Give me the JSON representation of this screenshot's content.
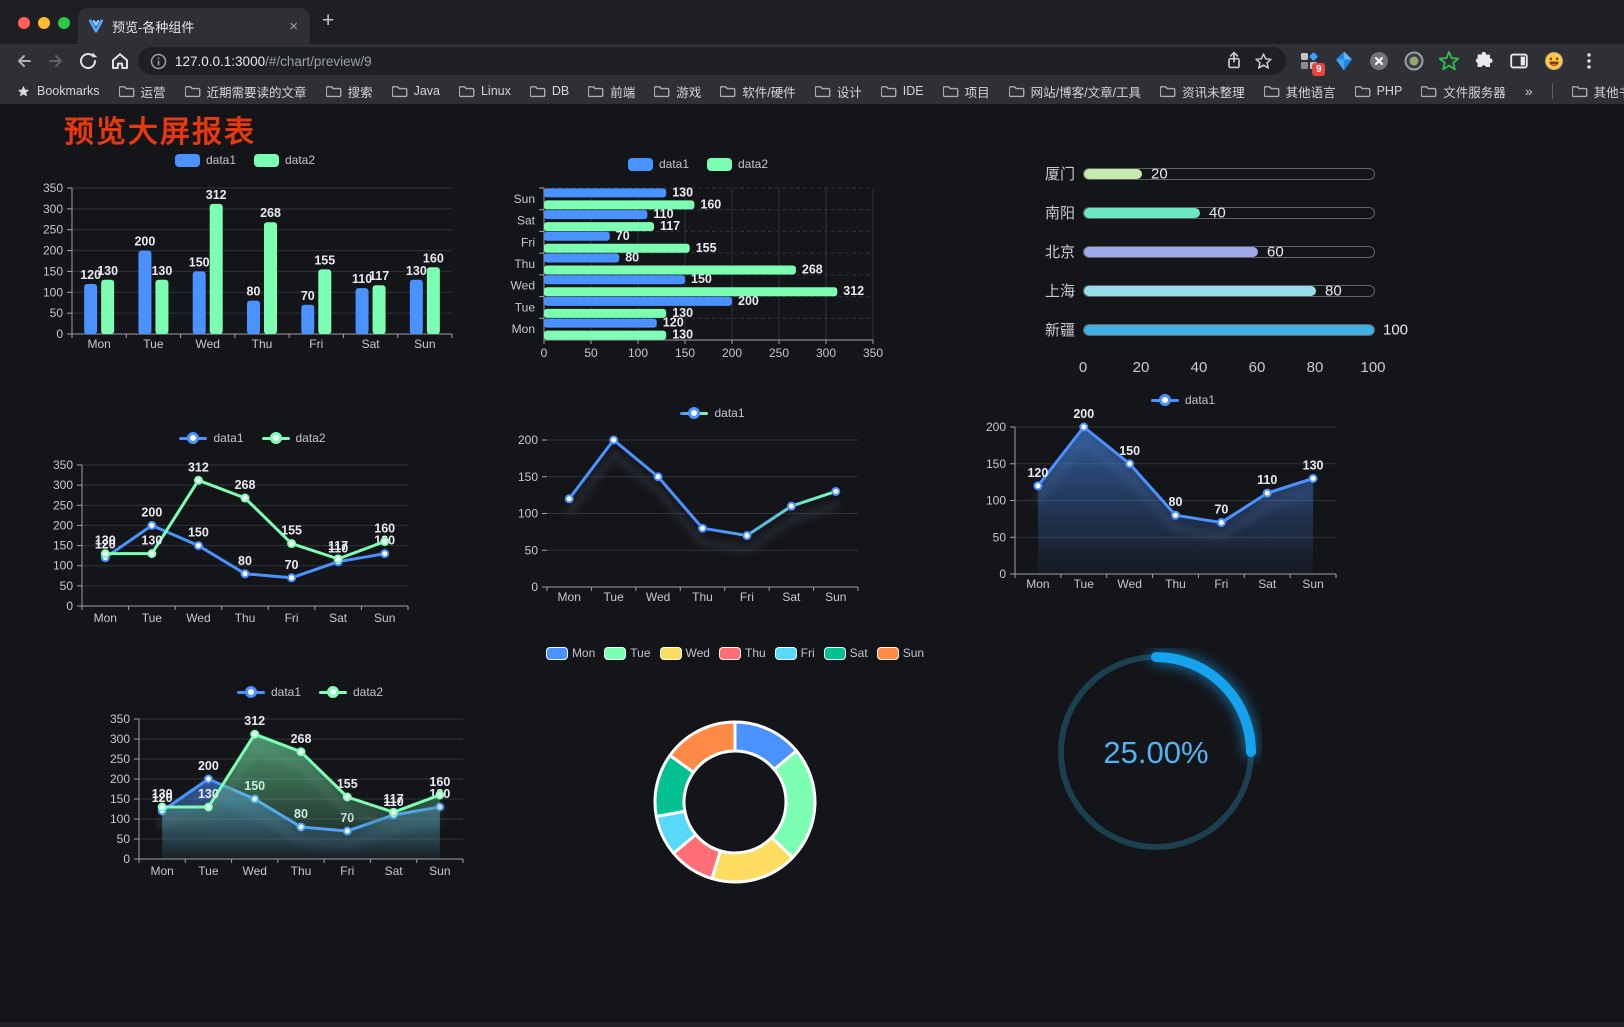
{
  "browser": {
    "tab": {
      "title": "预览-各种组件",
      "close": "×",
      "new_tab": "+"
    },
    "url": {
      "host": "127.0.0.1:3000",
      "path": "/#/chart/preview/9"
    },
    "extensions_badge": "9",
    "bookmarks": {
      "label": "Bookmarks",
      "items": [
        "运营",
        "近期需要读的文章",
        "搜索",
        "Java",
        "Linux",
        "DB",
        "前端",
        "游戏",
        "软件/硬件",
        "设计",
        "IDE",
        "项目",
        "网站/博客/文章/工具",
        "资讯未整理",
        "其他语言",
        "PHP",
        "文件服务器"
      ],
      "overflow": "»",
      "other": "其他书签"
    }
  },
  "page": {
    "title": "预览大屏报表",
    "title_color": "#E8380E",
    "background": "#141519"
  },
  "chart_data": [
    {
      "id": "bar-grouped",
      "type": "bar",
      "categories": [
        "Mon",
        "Tue",
        "Wed",
        "Thu",
        "Fri",
        "Sat",
        "Sun"
      ],
      "series": [
        {
          "name": "data1",
          "color": "#4992FF",
          "values": [
            120,
            200,
            150,
            80,
            70,
            110,
            130
          ]
        },
        {
          "name": "data2",
          "color": "#7CFFB2",
          "values": [
            130,
            130,
            312,
            268,
            155,
            117,
            160
          ]
        }
      ],
      "ylim": [
        0,
        350
      ],
      "yticks": [
        0,
        50,
        100,
        150,
        200,
        250,
        300,
        350
      ],
      "legend_position": "top",
      "value_labels": true,
      "grid": true
    },
    {
      "id": "bar-horizontal",
      "type": "bar-horizontal",
      "categories": [
        "Mon",
        "Tue",
        "Wed",
        "Thu",
        "Fri",
        "Sat",
        "Sun"
      ],
      "categories_order": "bottom-to-top",
      "series": [
        {
          "name": "data1",
          "color": "#4992FF",
          "values": [
            120,
            200,
            150,
            80,
            70,
            110,
            130
          ]
        },
        {
          "name": "data2",
          "color": "#7CFFB2",
          "values": [
            130,
            130,
            312,
            268,
            155,
            117,
            160
          ]
        }
      ],
      "xlim": [
        0,
        350
      ],
      "xticks": [
        0,
        50,
        100,
        150,
        200,
        250,
        300,
        350
      ],
      "legend_position": "top",
      "value_labels": true,
      "grid": true
    },
    {
      "id": "progress",
      "type": "progress-bars",
      "categories": [
        "厦门",
        "南阳",
        "北京",
        "上海",
        "新疆"
      ],
      "values": [
        20,
        40,
        60,
        80,
        100
      ],
      "colors": [
        "#C4EBAD",
        "#6BE6C1",
        "#A0A7E6",
        "#96DEE8",
        "#3FB1E3"
      ],
      "xlim": [
        0,
        100
      ],
      "xticks": [
        0,
        20,
        40,
        60,
        80,
        100
      ]
    },
    {
      "id": "line-two",
      "type": "line",
      "categories": [
        "Mon",
        "Tue",
        "Wed",
        "Thu",
        "Fri",
        "Sat",
        "Sun"
      ],
      "series": [
        {
          "name": "data1",
          "color": "#4992FF",
          "values": [
            120,
            200,
            150,
            80,
            70,
            110,
            130
          ]
        },
        {
          "name": "data2",
          "color": "#7CFFB2",
          "values": [
            130,
            130,
            312,
            268,
            155,
            117,
            160
          ]
        }
      ],
      "ylim": [
        0,
        350
      ],
      "yticks": [
        0,
        50,
        100,
        150,
        200,
        250,
        300,
        350
      ],
      "legend_position": "top",
      "point_labels": true,
      "grid": true
    },
    {
      "id": "line-gradient",
      "type": "line",
      "categories": [
        "Mon",
        "Tue",
        "Wed",
        "Thu",
        "Fri",
        "Sat",
        "Sun"
      ],
      "series": [
        {
          "name": "data1",
          "color": "#4992FF",
          "gradient_to": "#7CFFB2",
          "values": [
            120,
            200,
            150,
            80,
            70,
            110,
            130
          ]
        }
      ],
      "ylim": [
        0,
        200
      ],
      "yticks": [
        0,
        50,
        100,
        150,
        200
      ],
      "legend_position": "top",
      "point_labels": false,
      "shadow": true,
      "y_axis_line": false,
      "grid": true
    },
    {
      "id": "area-single",
      "type": "line",
      "categories": [
        "Mon",
        "Tue",
        "Wed",
        "Thu",
        "Fri",
        "Sat",
        "Sun"
      ],
      "series": [
        {
          "name": "data1",
          "color": "#4992FF",
          "area": true,
          "values": [
            120,
            200,
            150,
            80,
            70,
            110,
            130
          ]
        }
      ],
      "ylim": [
        0,
        200
      ],
      "yticks": [
        0,
        50,
        100,
        150,
        200
      ],
      "legend_position": "top",
      "point_labels": true,
      "shadow": true,
      "grid": true
    },
    {
      "id": "area-two",
      "type": "line",
      "categories": [
        "Mon",
        "Tue",
        "Wed",
        "Thu",
        "Fri",
        "Sat",
        "Sun"
      ],
      "series": [
        {
          "name": "data1",
          "color": "#4992FF",
          "area": true,
          "values": [
            120,
            200,
            150,
            80,
            70,
            110,
            130
          ]
        },
        {
          "name": "data2",
          "color": "#7CFFB2",
          "area": true,
          "values": [
            130,
            130,
            312,
            268,
            155,
            117,
            160
          ]
        }
      ],
      "ylim": [
        0,
        350
      ],
      "yticks": [
        0,
        50,
        100,
        150,
        200,
        250,
        300,
        350
      ],
      "legend_position": "top",
      "point_labels": true,
      "shadow": true,
      "grid": true
    },
    {
      "id": "donut",
      "type": "pie",
      "shape": "donut",
      "categories": [
        "Mon",
        "Tue",
        "Wed",
        "Thu",
        "Fri",
        "Sat",
        "Sun"
      ],
      "values": [
        120,
        200,
        150,
        80,
        70,
        110,
        130
      ],
      "colors": [
        "#4992FF",
        "#7CFFB2",
        "#FDDD60",
        "#FF6E76",
        "#58D9F9",
        "#05C091",
        "#FF8A45"
      ],
      "border_color": "#FFFFFF",
      "legend_position": "top"
    },
    {
      "id": "gauge",
      "type": "gauge",
      "value": 25,
      "max": 100,
      "label": "25.00%",
      "progress_color": "#16A3EE",
      "track_color": "#1C4050",
      "text_color": "#4FB5F2"
    }
  ]
}
